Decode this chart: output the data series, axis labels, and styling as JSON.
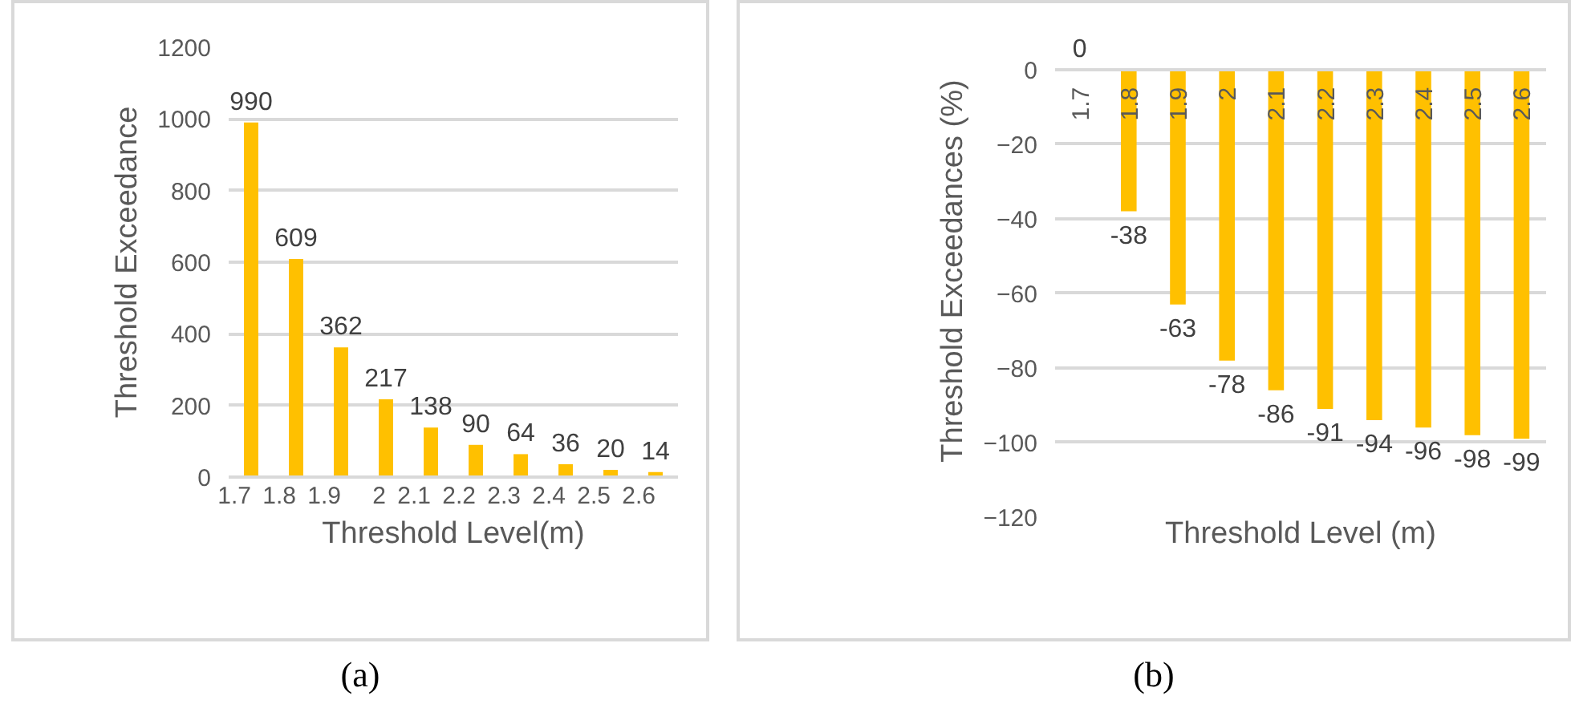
{
  "chart_data": [
    {
      "type": "bar",
      "ylabel": "Threshold Exceedance",
      "xlabel": "Threshold Level(m)",
      "categories": [
        "1.7",
        "1.8",
        "1.9",
        "2",
        "2.1",
        "2.2",
        "2.3",
        "2.4",
        "2.5",
        "2.6"
      ],
      "values": [
        990,
        609,
        362,
        217,
        138,
        90,
        64,
        36,
        20,
        14
      ],
      "color": "#ffc000",
      "ylim": [
        0,
        1200
      ],
      "yticks": [
        0,
        200,
        400,
        600,
        800,
        1000,
        1200
      ],
      "grid": "y",
      "data_labels": true,
      "annotations": [
        "(a)"
      ]
    },
    {
      "type": "bar",
      "ylabel": "Threshold Exceedances (%)",
      "xlabel": "Threshold Level (m)",
      "categories": [
        "1.7",
        "1.8",
        "1.9",
        "2",
        "2.1",
        "2.2",
        "2.3",
        "2.4",
        "2.5",
        "2.6"
      ],
      "values": [
        0,
        -38,
        -63,
        -78,
        -86,
        -91,
        -94,
        -96,
        -98,
        -99
      ],
      "color": "#ffc000",
      "ylim": [
        -120,
        0
      ],
      "yticks": [
        -120,
        -100,
        -80,
        -60,
        -40,
        -20,
        0
      ],
      "grid": "y",
      "data_labels": true,
      "annotations": [
        "(b)"
      ]
    }
  ]
}
